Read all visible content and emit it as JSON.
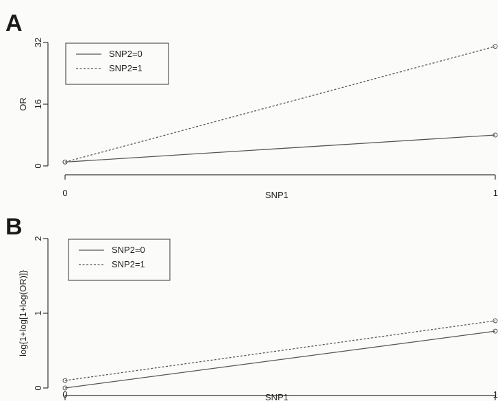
{
  "colors": {
    "line": "#555555",
    "axis": "#333333",
    "background": "#fbfbf9"
  },
  "chart_data": [
    {
      "type": "line",
      "panel_label": "A",
      "xlabel": "SNP1",
      "ylabel": "OR",
      "x": [
        0,
        1
      ],
      "x_ticks": [
        0,
        1
      ],
      "y_ticks": [
        0,
        16,
        32
      ],
      "xlim": [
        0,
        1
      ],
      "ylim": [
        0,
        32
      ],
      "legend_position": "top-left",
      "series": [
        {
          "name": "SNP2=0",
          "style": "solid",
          "values": [
            1,
            8
          ]
        },
        {
          "name": "SNP2=1",
          "style": "dashed",
          "values": [
            1,
            31
          ]
        }
      ]
    },
    {
      "type": "line",
      "panel_label": "B",
      "xlabel": "SNP1",
      "ylabel": "log{1+log[1+log(OR)]}",
      "x": [
        0,
        1
      ],
      "x_ticks": [
        0,
        1
      ],
      "y_ticks": [
        0,
        1,
        2
      ],
      "xlim": [
        0,
        1
      ],
      "ylim": [
        0,
        2
      ],
      "legend_position": "top-left",
      "series": [
        {
          "name": "SNP2=0",
          "style": "solid",
          "values": [
            0,
            0.76
          ]
        },
        {
          "name": "SNP2=1",
          "style": "dashed",
          "values": [
            0.1,
            0.9
          ]
        }
      ]
    }
  ]
}
